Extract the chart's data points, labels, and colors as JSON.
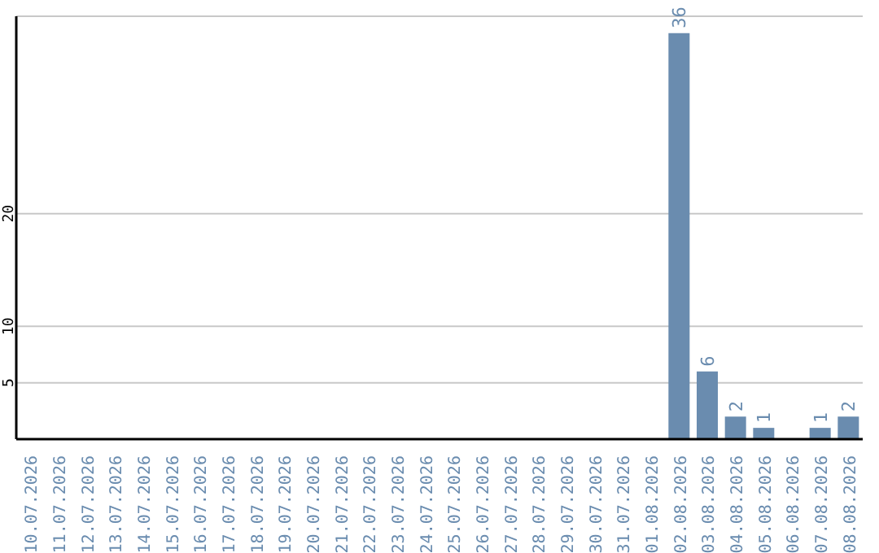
{
  "chart_data": {
    "type": "bar",
    "categories": [
      "10.07.2026",
      "11.07.2026",
      "12.07.2026",
      "13.07.2026",
      "14.07.2026",
      "15.07.2026",
      "16.07.2026",
      "17.07.2026",
      "18.07.2026",
      "19.07.2026",
      "20.07.2026",
      "21.07.2026",
      "22.07.2026",
      "23.07.2026",
      "24.07.2026",
      "25.07.2026",
      "26.07.2026",
      "27.07.2026",
      "28.07.2026",
      "29.07.2026",
      "30.07.2026",
      "31.07.2026",
      "01.08.2026",
      "02.08.2026",
      "03.08.2026",
      "04.08.2026",
      "05.08.2026",
      "06.08.2026",
      "07.08.2026",
      "08.08.2026"
    ],
    "values": [
      0,
      0,
      0,
      0,
      0,
      0,
      0,
      0,
      0,
      0,
      0,
      0,
      0,
      0,
      0,
      0,
      0,
      0,
      0,
      0,
      0,
      0,
      0,
      36,
      6,
      2,
      1,
      0,
      1,
      2
    ],
    "value_labels": [
      null,
      null,
      null,
      null,
      null,
      null,
      null,
      null,
      null,
      null,
      null,
      null,
      null,
      null,
      null,
      null,
      null,
      null,
      null,
      null,
      null,
      null,
      null,
      "36",
      "6",
      "2",
      "1",
      null,
      "1",
      "2"
    ],
    "color": "#6a8caf",
    "ylim": [
      0,
      37.5
    ],
    "yticks": [
      5,
      10,
      20
    ],
    "grid": "y"
  }
}
